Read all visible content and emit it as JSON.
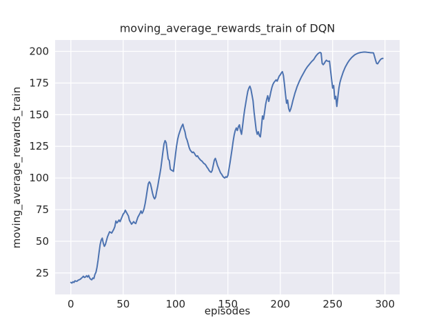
{
  "figure": {
    "background": "#ffffff"
  },
  "chart_data": {
    "type": "line",
    "title": "moving_average_rewards_train of DQN",
    "xlabel": "episodes",
    "ylabel": "moving_average_rewards_train",
    "x_ticks": [
      0,
      50,
      100,
      150,
      200,
      250,
      300
    ],
    "y_ticks": [
      25,
      50,
      75,
      100,
      125,
      150,
      175,
      200
    ],
    "xlim": [
      -15,
      314
    ],
    "ylim": [
      8,
      209
    ],
    "grid": true,
    "legend": null,
    "style": "seaborn-darkgrid",
    "colors": {
      "line": "#4C72B0",
      "plot_bg": "#EAEAF2",
      "grid": "#FFFFFF",
      "text": "#262626",
      "figure_bg": "#FFFFFF"
    },
    "series": [
      {
        "name": "moving_average_rewards_train",
        "x_start": 0,
        "x_step": 1,
        "values": [
          17.5,
          17.0,
          18.0,
          17.5,
          18.8,
          18.4,
          18.5,
          19.3,
          19.6,
          20.0,
          20.8,
          21.5,
          22.4,
          21.4,
          21.8,
          22.8,
          21.8,
          23.0,
          21.0,
          20.0,
          19.6,
          21.0,
          20.6,
          23.8,
          25.5,
          29.5,
          35.0,
          41.5,
          47.5,
          51.0,
          52.5,
          48.5,
          46.0,
          47.5,
          50.5,
          53.5,
          55.5,
          57.5,
          57.0,
          56.5,
          58.0,
          59.5,
          61.5,
          66.0,
          64.5,
          65.5,
          66.8,
          65.5,
          67.5,
          69.5,
          71.5,
          72.5,
          74.5,
          73.0,
          71.5,
          70.0,
          66.5,
          65.0,
          63.5,
          64.5,
          65.5,
          64.5,
          64.0,
          66.5,
          69.0,
          70.5,
          72.0,
          74.0,
          72.0,
          73.5,
          76.0,
          80.0,
          85.0,
          90.5,
          95.5,
          97.0,
          95.5,
          92.0,
          88.0,
          85.0,
          83.5,
          85.0,
          89.5,
          93.5,
          98.5,
          103.0,
          108.0,
          114.5,
          121.0,
          127.0,
          129.5,
          128.0,
          121.5,
          115.0,
          113.8,
          107.0,
          106.2,
          105.8,
          105.2,
          112.0,
          119.0,
          125.5,
          130.5,
          134.0,
          136.5,
          139.0,
          141.0,
          142.5,
          139.0,
          136.5,
          132.0,
          130.0,
          127.0,
          124.0,
          122.0,
          121.0,
          120.0,
          120.5,
          119.5,
          118.0,
          117.0,
          117.5,
          116.0,
          115.0,
          114.0,
          113.5,
          112.5,
          111.5,
          111.0,
          110.0,
          108.5,
          107.5,
          106.0,
          105.0,
          104.5,
          106.0,
          110.0,
          114.0,
          115.5,
          113.0,
          110.0,
          108.0,
          106.0,
          104.0,
          103.0,
          101.5,
          100.5,
          100.0,
          101.0,
          100.5,
          102.0,
          107.0,
          112.0,
          117.5,
          123.0,
          129.0,
          134.0,
          137.5,
          139.5,
          137.5,
          140.5,
          142.0,
          137.5,
          134.5,
          141.0,
          148.0,
          154.0,
          159.0,
          164.0,
          168.5,
          171.0,
          172.5,
          170.0,
          165.5,
          161.0,
          152.0,
          145.0,
          138.0,
          134.5,
          136.5,
          133.5,
          132.5,
          140.0,
          149.0,
          146.5,
          152.0,
          158.0,
          162.0,
          165.0,
          160.5,
          164.0,
          168.0,
          171.5,
          174.0,
          175.5,
          176.5,
          177.5,
          176.5,
          178.5,
          180.5,
          181.5,
          183.0,
          184.0,
          181.0,
          174.0,
          166.0,
          159.0,
          161.5,
          155.0,
          152.5,
          154.5,
          157.5,
          161.0,
          164.0,
          167.0,
          169.5,
          172.0,
          174.0,
          176.0,
          177.8,
          179.5,
          181.0,
          182.5,
          184.0,
          185.5,
          186.8,
          188.0,
          189.0,
          190.0,
          191.0,
          192.0,
          192.8,
          193.6,
          195.0,
          196.3,
          197.3,
          198.2,
          198.8,
          199.2,
          198.6,
          190.5,
          189.5,
          190.5,
          192.0,
          193.0,
          192.3,
          192.2,
          192.3,
          185.0,
          178.0,
          171.0,
          173.0,
          162.5,
          164.5,
          156.5,
          164.0,
          171.0,
          175.5,
          178.5,
          181.0,
          183.5,
          185.5,
          187.5,
          189.0,
          190.5,
          191.8,
          193.0,
          194.0,
          195.0,
          195.8,
          196.5,
          197.2,
          197.7,
          198.1,
          198.5,
          198.8,
          199.0,
          199.2,
          199.3,
          199.4,
          199.5,
          199.5,
          199.4,
          199.3,
          199.2,
          199.1,
          199.0,
          198.9,
          198.9,
          198.8,
          196.0,
          193.0,
          190.5,
          190.2,
          191.5,
          192.8,
          193.8,
          194.3,
          194.5
        ]
      }
    ]
  }
}
